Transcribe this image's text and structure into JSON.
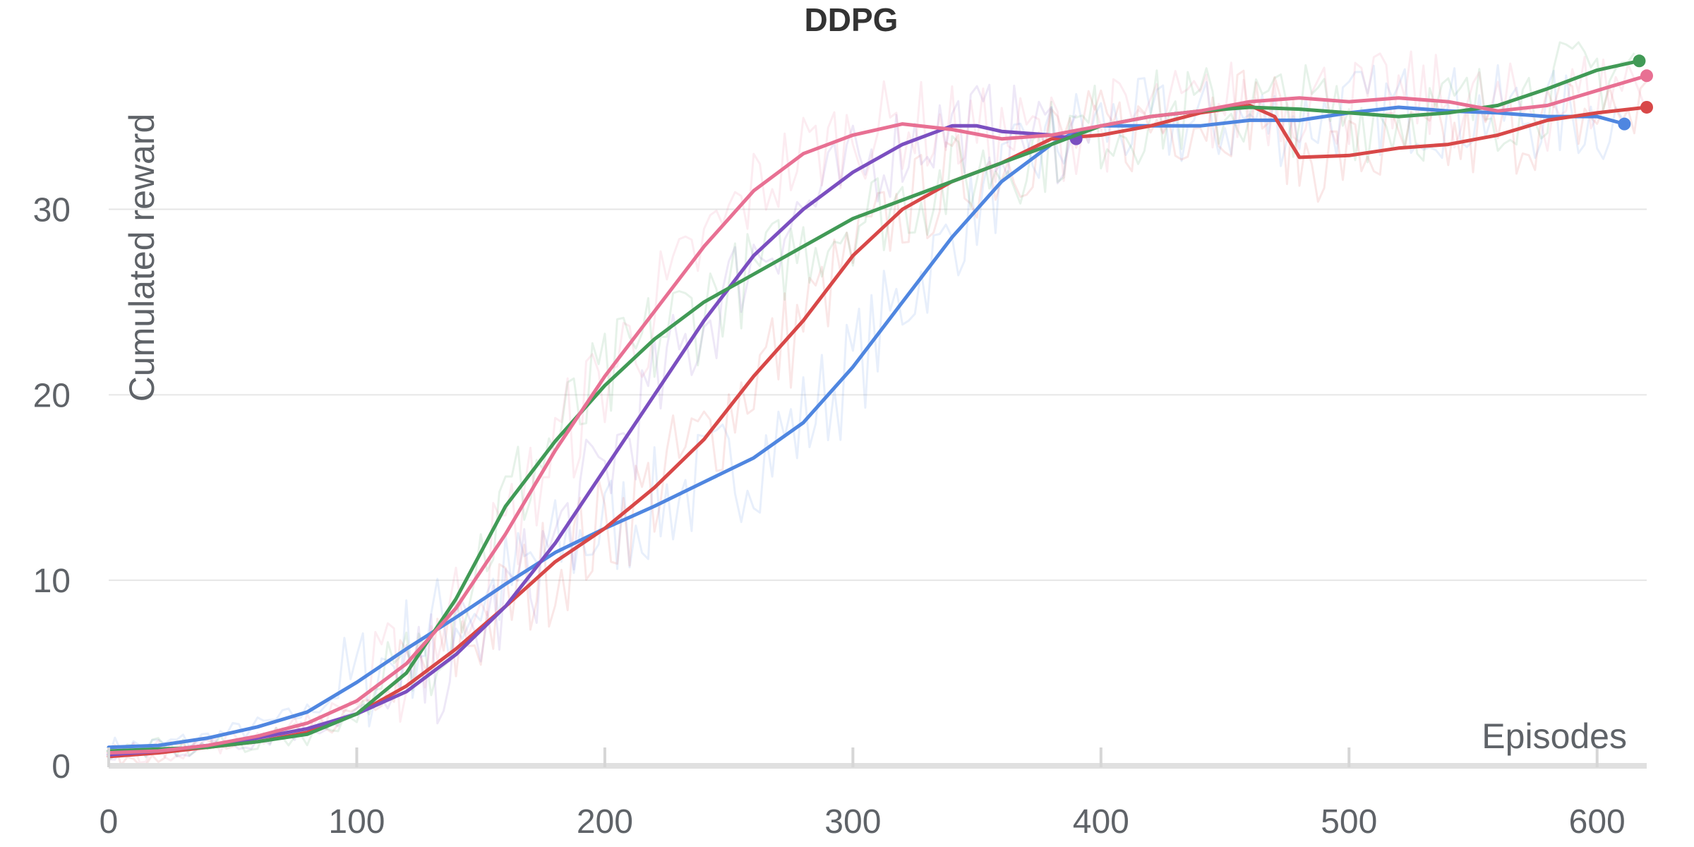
{
  "chart_data": {
    "type": "line",
    "title": "DDPG",
    "xlabel": "Episodes",
    "ylabel": "Cumulated reward",
    "xlim": [
      0,
      620
    ],
    "ylim": [
      0,
      39
    ],
    "xticks": [
      0,
      100,
      200,
      300,
      400,
      500,
      600
    ],
    "yticks": [
      0,
      10,
      20,
      30
    ],
    "grid": true,
    "legend": "none",
    "series": [
      {
        "color": "#4f86e0",
        "x": [
          0,
          20,
          40,
          60,
          80,
          100,
          120,
          140,
          160,
          180,
          200,
          220,
          240,
          260,
          280,
          300,
          320,
          340,
          360,
          380,
          390,
          400,
          420,
          440,
          460,
          480,
          500,
          520,
          540,
          560,
          580,
          600,
          611
        ],
        "y": [
          1.0,
          1.1,
          1.5,
          2.1,
          2.9,
          4.5,
          6.3,
          8.0,
          9.8,
          11.5,
          12.8,
          14.0,
          15.3,
          16.6,
          18.5,
          21.5,
          25.0,
          28.5,
          31.5,
          33.5,
          34.2,
          34.5,
          34.5,
          34.5,
          34.8,
          34.8,
          35.2,
          35.5,
          35.3,
          35.2,
          35.0,
          35.0,
          34.6
        ]
      },
      {
        "color": "#d84848",
        "x": [
          0,
          20,
          40,
          60,
          80,
          100,
          120,
          140,
          160,
          180,
          200,
          220,
          240,
          260,
          280,
          300,
          320,
          340,
          360,
          380,
          400,
          420,
          440,
          460,
          470,
          480,
          500,
          520,
          540,
          560,
          580,
          600,
          620
        ],
        "y": [
          0.5,
          0.7,
          1.0,
          1.3,
          1.8,
          2.8,
          4.3,
          6.3,
          8.6,
          11.0,
          12.8,
          15.0,
          17.6,
          21.0,
          24.0,
          27.5,
          30.0,
          31.5,
          32.5,
          33.8,
          34.0,
          34.5,
          35.2,
          35.6,
          35.0,
          32.8,
          32.9,
          33.3,
          33.5,
          34.0,
          34.8,
          35.2,
          35.5
        ]
      },
      {
        "color": "#7b4fc0",
        "x": [
          0,
          20,
          40,
          60,
          80,
          100,
          120,
          140,
          160,
          180,
          200,
          220,
          240,
          260,
          280,
          300,
          320,
          340,
          350,
          360,
          380,
          390
        ],
        "y": [
          0.6,
          0.8,
          1.1,
          1.5,
          2.0,
          2.8,
          4.0,
          6.0,
          8.6,
          12.0,
          16.0,
          20.0,
          24.0,
          27.5,
          30.0,
          32.0,
          33.5,
          34.5,
          34.5,
          34.2,
          34.0,
          33.8
        ]
      },
      {
        "color": "#419a56",
        "x": [
          0,
          20,
          40,
          60,
          80,
          100,
          120,
          140,
          160,
          180,
          200,
          220,
          240,
          260,
          280,
          300,
          320,
          340,
          360,
          380,
          400,
          420,
          440,
          460,
          480,
          500,
          520,
          540,
          560,
          580,
          600,
          617
        ],
        "y": [
          0.8,
          0.9,
          1.0,
          1.3,
          1.7,
          2.8,
          5.0,
          9.0,
          14.0,
          17.5,
          20.5,
          23.0,
          25.0,
          26.5,
          28.0,
          29.5,
          30.5,
          31.5,
          32.5,
          33.5,
          34.5,
          35.0,
          35.3,
          35.5,
          35.4,
          35.2,
          35.0,
          35.2,
          35.6,
          36.5,
          37.5,
          38.0
        ]
      },
      {
        "color": "#e87093",
        "x": [
          0,
          20,
          40,
          60,
          80,
          100,
          120,
          140,
          160,
          180,
          200,
          220,
          240,
          260,
          280,
          300,
          320,
          340,
          360,
          380,
          400,
          420,
          440,
          460,
          480,
          500,
          520,
          540,
          560,
          580,
          600,
          620
        ],
        "y": [
          0.7,
          0.8,
          1.1,
          1.6,
          2.3,
          3.5,
          5.5,
          8.5,
          12.5,
          17.0,
          21.0,
          24.5,
          28.0,
          31.0,
          33.0,
          34.0,
          34.6,
          34.3,
          33.8,
          34.0,
          34.5,
          35.0,
          35.3,
          35.8,
          36.0,
          35.8,
          36.0,
          35.8,
          35.3,
          35.6,
          36.4,
          37.2
        ]
      }
    ]
  }
}
